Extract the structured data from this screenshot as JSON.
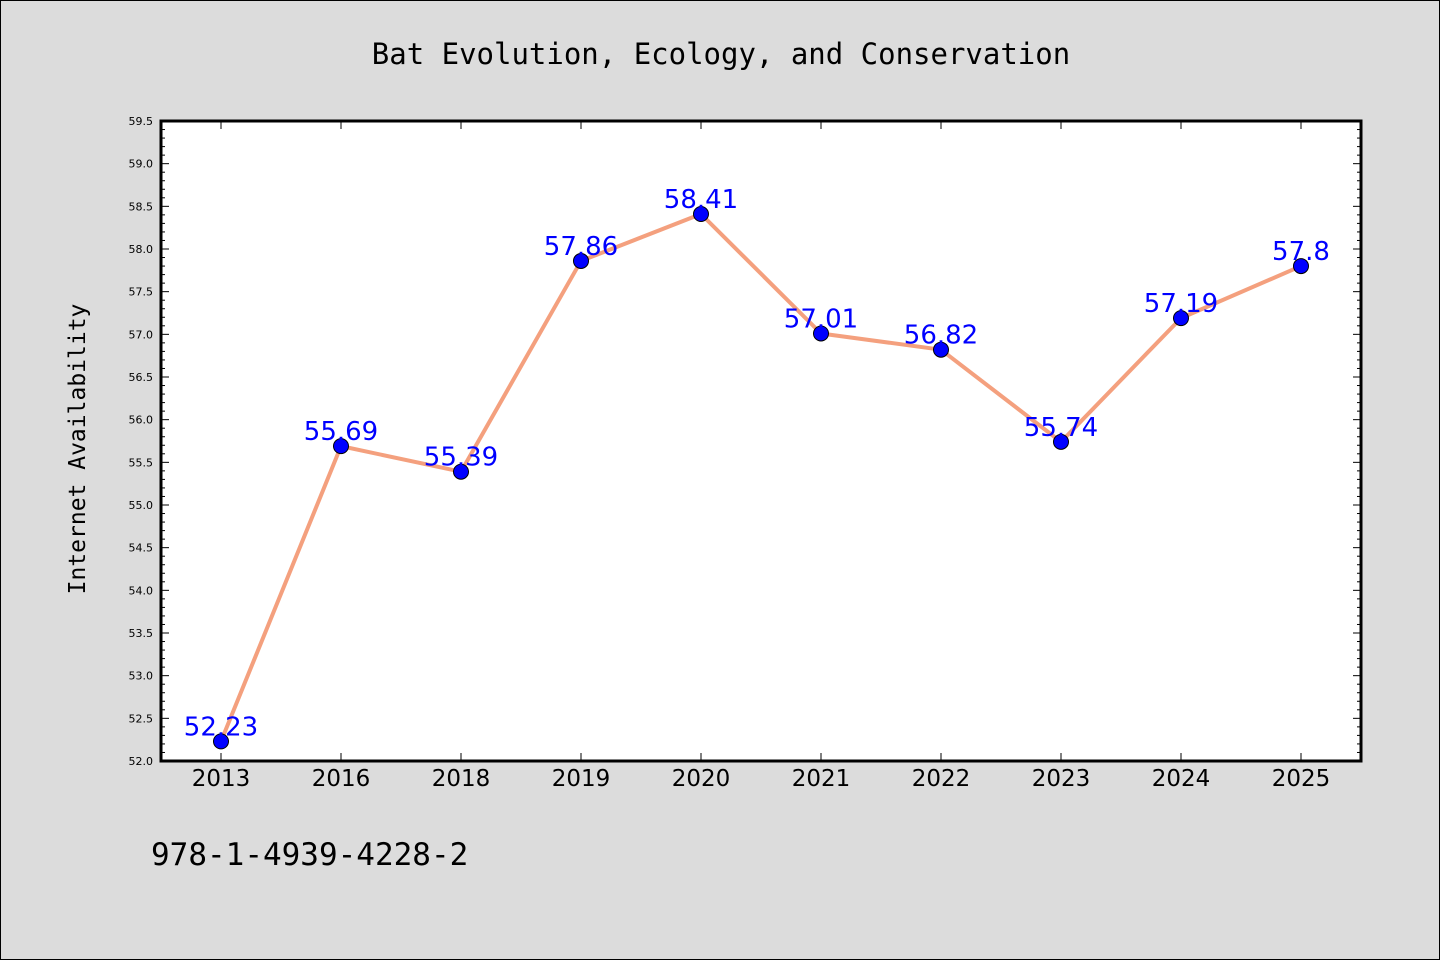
{
  "chart_data": {
    "type": "line",
    "title": "Bat Evolution, Ecology, and Conservation",
    "xlabel": "",
    "ylabel": "Internet Availability",
    "categories": [
      "2013",
      "2016",
      "2018",
      "2019",
      "2020",
      "2021",
      "2022",
      "2023",
      "2024",
      "2025"
    ],
    "series": [
      {
        "values": [
          52.23,
          55.69,
          55.39,
          57.86,
          58.41,
          57.01,
          56.82,
          55.74,
          57.19,
          57.8
        ],
        "data_labels": [
          "52.23",
          "55.69",
          "55.39",
          "57.86",
          "58.41",
          "57.01",
          "56.82",
          "55.74",
          "57.19",
          "57.8"
        ],
        "line_color": "#f4a07e",
        "marker_color": "#0000ff"
      }
    ],
    "ylim": [
      52.0,
      59.5
    ],
    "yticks": [
      "52.0",
      "52.5",
      "53.0",
      "53.5",
      "54.0",
      "54.5",
      "55.0",
      "55.5",
      "56.0",
      "56.5",
      "57.0",
      "57.5",
      "58.0",
      "58.5",
      "59.0",
      "59.5"
    ],
    "grid": false,
    "legend": "none",
    "label_color": "#0000ff"
  },
  "footer": {
    "isbn": "978-1-4939-4228-2"
  },
  "colors": {
    "background": "#dcdcdc",
    "plot_background": "#ffffff"
  }
}
